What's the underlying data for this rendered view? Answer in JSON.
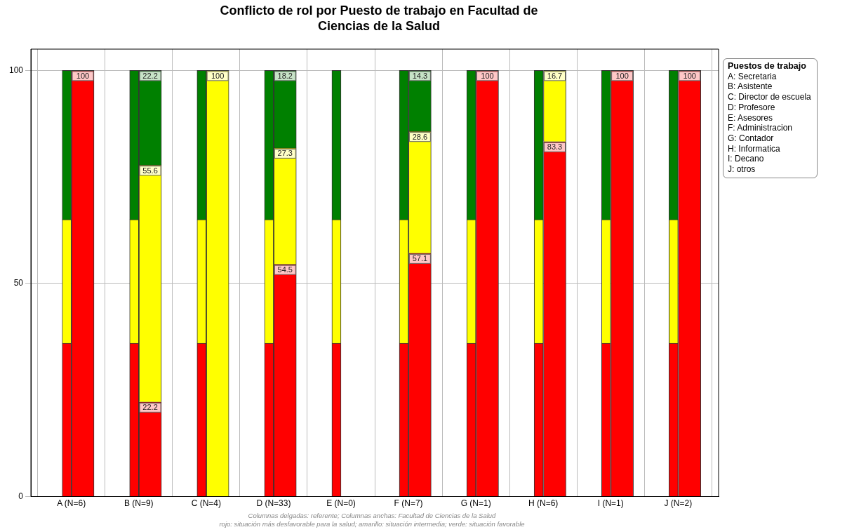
{
  "chart_data": {
    "type": "bar",
    "title": "Conflicto de rol por Puesto de trabajo en Facultad de Ciencias de la Salud",
    "categories": [
      "A (N=6)",
      "B (N=9)",
      "C (N=4)",
      "D (N=33)",
      "E (N=0)",
      "F (N=7)",
      "G (N=1)",
      "H (N=6)",
      "I (N=1)",
      "J (N=2)"
    ],
    "ylim": [
      0,
      105
    ],
    "yticks": [
      0,
      50,
      100
    ],
    "grid": true,
    "series": [
      {
        "color": "#ff0000",
        "base": [
          0,
          0,
          0,
          0,
          0,
          0,
          0,
          0,
          0,
          0
        ],
        "values": [
          36,
          36,
          36,
          36,
          36,
          36,
          36,
          36,
          36,
          36
        ]
      },
      {
        "color": "#ffff00",
        "base": [
          36,
          36,
          36,
          36,
          36,
          36,
          36,
          36,
          36,
          36
        ],
        "values": [
          29,
          29,
          29,
          29,
          29,
          29,
          29,
          29,
          29,
          29
        ]
      },
      {
        "color": "#008000",
        "base": [
          65,
          65,
          65,
          65,
          65,
          65,
          65,
          65,
          65,
          65
        ],
        "values": [
          35,
          35,
          35,
          35,
          35,
          35,
          35,
          35,
          35,
          35
        ]
      },
      {
        "color": "#ff0000",
        "base": [
          0,
          0,
          null,
          0,
          null,
          0,
          0,
          0,
          0,
          0
        ],
        "values": [
          100,
          22.2,
          null,
          54.5,
          null,
          57.1,
          100,
          83.3,
          100,
          100
        ],
        "value_labels": [
          "100",
          "22.2",
          null,
          "54.5",
          null,
          "57.1",
          "100",
          "83.3",
          "100",
          "100"
        ]
      },
      {
        "color": "#ffff00",
        "base": [
          null,
          22.2,
          0,
          54.5,
          null,
          57.1,
          null,
          83.3,
          null,
          null
        ],
        "values": [
          null,
          55.6,
          100,
          27.3,
          null,
          28.6,
          null,
          16.7,
          null,
          null
        ],
        "value_labels": [
          null,
          "55.6",
          "100",
          "27.3",
          null,
          "28.6",
          null,
          "16.7",
          null,
          null
        ]
      },
      {
        "color": "#008000",
        "base": [
          null,
          77.8,
          null,
          81.8,
          null,
          85.7,
          null,
          null,
          null,
          null
        ],
        "values": [
          null,
          22.2,
          null,
          18.2,
          null,
          14.3,
          null,
          null,
          null,
          null
        ],
        "value_labels": [
          null,
          "22.2",
          null,
          "18.2",
          null,
          "14.3",
          null,
          null,
          null,
          null
        ]
      }
    ],
    "legend_title": "Puestos de trabajo",
    "annotations": [
      "A: Secretaria",
      "B: Asistente",
      "C: Director de escuela",
      "D: Profesore",
      "E: Asesores",
      "F: Administracion",
      "G: Contador",
      "H: Informatica",
      "I: Decano",
      "J: otros",
      "Columnas delgadas: referente; Columnas anchas: Facultad de Ciencias de la Salud",
      "rojo: situación más desfavorable para la salud; amarillo: situación intermedia; verde: situación favorable"
    ]
  }
}
